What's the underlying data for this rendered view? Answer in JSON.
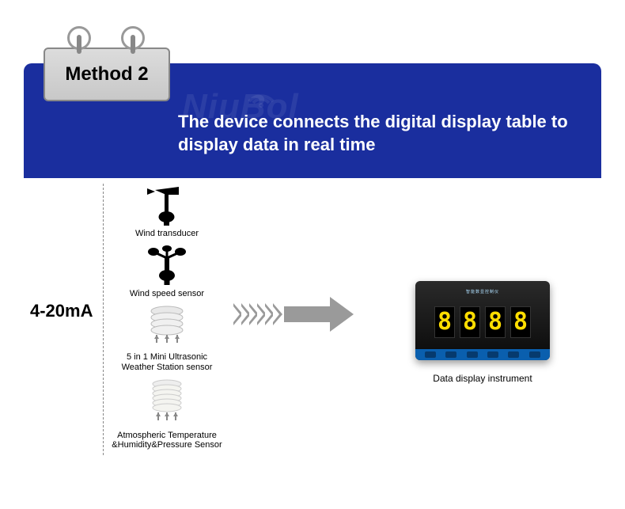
{
  "colors": {
    "panel_bg": "#1a2e9e",
    "tab_bg": "#d2d2d2",
    "tab_border": "#888888",
    "heading_text": "#ffffff",
    "arrow": "#9a9a9a",
    "digit_glow": "#ffdd00",
    "instrument_bg": "#111111",
    "instrument_btnbar": "#0a5fae",
    "watermark": "rgba(255,255,255,0.08)"
  },
  "tab": {
    "label": "Method 2"
  },
  "watermark": {
    "text": "NiuBol"
  },
  "heading": "The device connects the digital display table to display data in real time",
  "signal_label": "4-20mA",
  "sensors": [
    {
      "label": "Wind transducer"
    },
    {
      "label": "Wind speed sensor"
    },
    {
      "label": "5 in 1 Mini Ultrasonic\nWeather Station  sensor"
    },
    {
      "label": "Atmospheric Temperature\n&Humidity&Pressure Sensor"
    }
  ],
  "arrow": {
    "chevrons": 6
  },
  "display_instrument": {
    "top_text": "智能数显控制仪",
    "digits": [
      "8",
      "8",
      "8",
      "8"
    ],
    "buttons": 6,
    "label": "Data display instrument"
  }
}
